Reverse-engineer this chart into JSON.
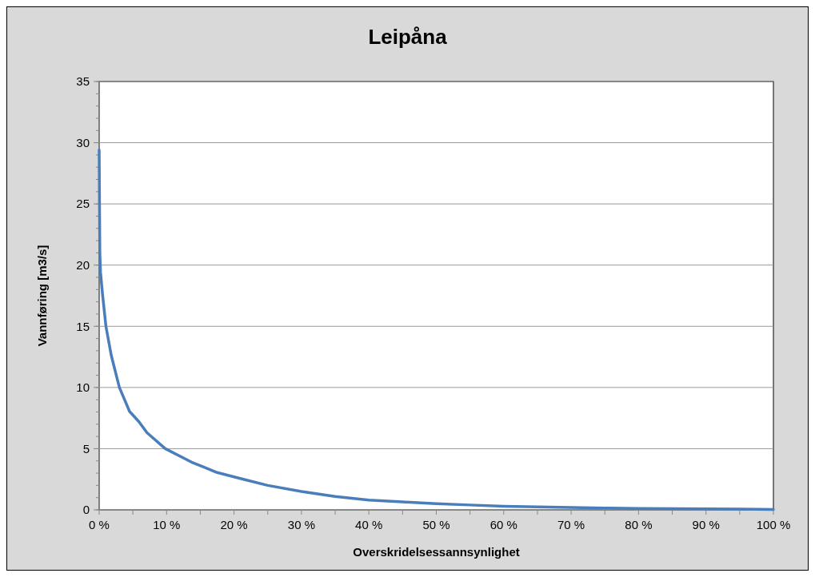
{
  "chart_data": {
    "type": "line",
    "title": "Leipåna",
    "xlabel": "Overskridelsessannsynlighet",
    "ylabel": "Vannføring [m3/s]",
    "x": [
      0,
      0.05,
      0.1,
      0.2,
      0.5,
      1.0,
      1.8,
      3.0,
      4.5,
      5.9,
      7.1,
      9.8,
      13.7,
      17.5,
      21.4,
      25,
      30,
      35,
      40,
      45,
      50,
      55,
      60,
      65,
      70,
      75,
      80,
      85,
      90,
      95,
      100
    ],
    "series": [
      {
        "color": "#4a7ebb",
        "values": [
          29.4,
          25,
          20.9,
          19.4,
          17.6,
          15.0,
          12.6,
          10.0,
          8.05,
          7.2,
          6.3,
          5.0,
          3.9,
          3.05,
          2.5,
          2.0,
          1.5,
          1.1,
          0.8,
          0.65,
          0.5,
          0.4,
          0.3,
          0.25,
          0.2,
          0.15,
          0.12,
          0.1,
          0.08,
          0.06,
          0.03
        ]
      }
    ],
    "xlim": [
      0,
      100
    ],
    "ylim": [
      0,
      35
    ],
    "xticks": [
      {
        "value": 0,
        "label": "0 %"
      },
      {
        "value": 5,
        "label": null
      },
      {
        "value": 10,
        "label": "10 %"
      },
      {
        "value": 15,
        "label": null
      },
      {
        "value": 20,
        "label": "20 %"
      },
      {
        "value": 25,
        "label": null
      },
      {
        "value": 30,
        "label": "30 %"
      },
      {
        "value": 35,
        "label": null
      },
      {
        "value": 40,
        "label": "40 %"
      },
      {
        "value": 45,
        "label": null
      },
      {
        "value": 50,
        "label": "50 %"
      },
      {
        "value": 55,
        "label": null
      },
      {
        "value": 60,
        "label": "60 %"
      },
      {
        "value": 65,
        "label": null
      },
      {
        "value": 70,
        "label": "70 %"
      },
      {
        "value": 75,
        "label": null
      },
      {
        "value": 80,
        "label": "80 %"
      },
      {
        "value": 85,
        "label": null
      },
      {
        "value": 90,
        "label": "90 %"
      },
      {
        "value": 95,
        "label": null
      },
      {
        "value": 100,
        "label": "100 %"
      }
    ],
    "yticks": [
      0,
      5,
      10,
      15,
      20,
      25,
      30,
      35
    ],
    "grid": "y",
    "marker": "none",
    "line_style": "solid"
  }
}
